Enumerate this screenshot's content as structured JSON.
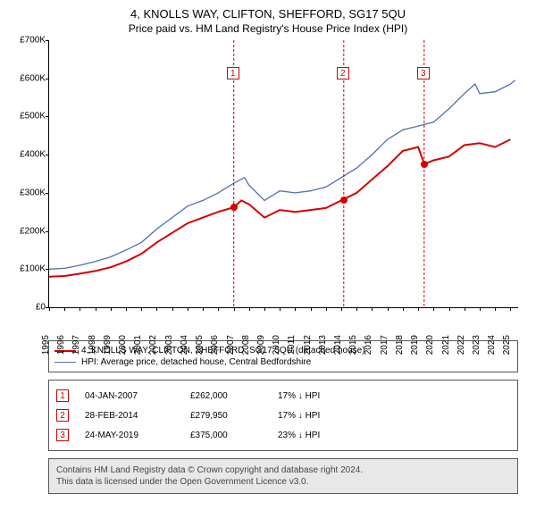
{
  "title": {
    "line1": "4, KNOLLS WAY, CLIFTON, SHEFFORD, SG17 5QU",
    "line2": "Price paid vs. HM Land Registry's House Price Index (HPI)"
  },
  "chart": {
    "type": "line",
    "ylim": [
      0,
      700000
    ],
    "ytick_step": 100000,
    "ytick_labels": [
      "£0",
      "£100K",
      "£200K",
      "£300K",
      "£400K",
      "£500K",
      "£600K",
      "£700K"
    ],
    "xlim": [
      1995,
      2025.5
    ],
    "xtick_start": 1995,
    "xtick_end": 2025,
    "background_color": "#ffffff",
    "axis_color": "#000000",
    "series": [
      {
        "name": "property",
        "color": "#d40000",
        "width": 2,
        "label": "4, KNOLLS WAY, CLIFTON, SHEFFORD, SG17 5QU (detached house)",
        "points": [
          [
            1995,
            80000
          ],
          [
            1996,
            82000
          ],
          [
            1997,
            88000
          ],
          [
            1998,
            95000
          ],
          [
            1999,
            105000
          ],
          [
            2000,
            120000
          ],
          [
            2001,
            140000
          ],
          [
            2002,
            170000
          ],
          [
            2003,
            195000
          ],
          [
            2004,
            220000
          ],
          [
            2005,
            235000
          ],
          [
            2006,
            250000
          ],
          [
            2007,
            262000
          ],
          [
            2007.5,
            280000
          ],
          [
            2008,
            270000
          ],
          [
            2009,
            235000
          ],
          [
            2010,
            255000
          ],
          [
            2011,
            250000
          ],
          [
            2012,
            255000
          ],
          [
            2013,
            260000
          ],
          [
            2014,
            280000
          ],
          [
            2015,
            300000
          ],
          [
            2016,
            335000
          ],
          [
            2017,
            370000
          ],
          [
            2018,
            410000
          ],
          [
            2019,
            420000
          ],
          [
            2019.4,
            375000
          ],
          [
            2020,
            385000
          ],
          [
            2021,
            395000
          ],
          [
            2022,
            425000
          ],
          [
            2023,
            430000
          ],
          [
            2024,
            420000
          ],
          [
            2025,
            440000
          ]
        ]
      },
      {
        "name": "hpi",
        "color": "#4f6fb3",
        "width": 1.3,
        "label": "HPI: Average price, detached house, Central Bedfordshire",
        "points": [
          [
            1995,
            100000
          ],
          [
            1996,
            102000
          ],
          [
            1997,
            110000
          ],
          [
            1998,
            120000
          ],
          [
            1999,
            132000
          ],
          [
            2000,
            150000
          ],
          [
            2001,
            170000
          ],
          [
            2002,
            205000
          ],
          [
            2003,
            235000
          ],
          [
            2004,
            265000
          ],
          [
            2005,
            280000
          ],
          [
            2006,
            300000
          ],
          [
            2007,
            325000
          ],
          [
            2007.7,
            340000
          ],
          [
            2008,
            320000
          ],
          [
            2009,
            280000
          ],
          [
            2010,
            305000
          ],
          [
            2011,
            300000
          ],
          [
            2012,
            305000
          ],
          [
            2013,
            315000
          ],
          [
            2014,
            340000
          ],
          [
            2015,
            365000
          ],
          [
            2016,
            400000
          ],
          [
            2017,
            440000
          ],
          [
            2018,
            465000
          ],
          [
            2019,
            475000
          ],
          [
            2020,
            485000
          ],
          [
            2021,
            520000
          ],
          [
            2022,
            560000
          ],
          [
            2022.7,
            585000
          ],
          [
            2023,
            560000
          ],
          [
            2024,
            565000
          ],
          [
            2025,
            585000
          ],
          [
            2025.3,
            595000
          ]
        ]
      }
    ],
    "event_lines": {
      "color": "#d40000",
      "dash": "3,2",
      "marker_top_y": 60000
    },
    "events": [
      {
        "n": "1",
        "date_label": "04-JAN-2007",
        "price_label": "£262,000",
        "hpi_label": "17% ↓ HPI",
        "x": 2007.01,
        "price": 262000
      },
      {
        "n": "2",
        "date_label": "28-FEB-2014",
        "price_label": "£279,950",
        "hpi_label": "17% ↓ HPI",
        "x": 2014.16,
        "price": 279950
      },
      {
        "n": "3",
        "date_label": "24-MAY-2019",
        "price_label": "£375,000",
        "hpi_label": "23% ↓ HPI",
        "x": 2019.39,
        "price": 375000
      }
    ]
  },
  "legend": {
    "border_color": "#555555"
  },
  "footer": {
    "line1": "Contains HM Land Registry data © Crown copyright and database right 2024.",
    "line2": "This data is licensed under the Open Government Licence v3.0."
  }
}
